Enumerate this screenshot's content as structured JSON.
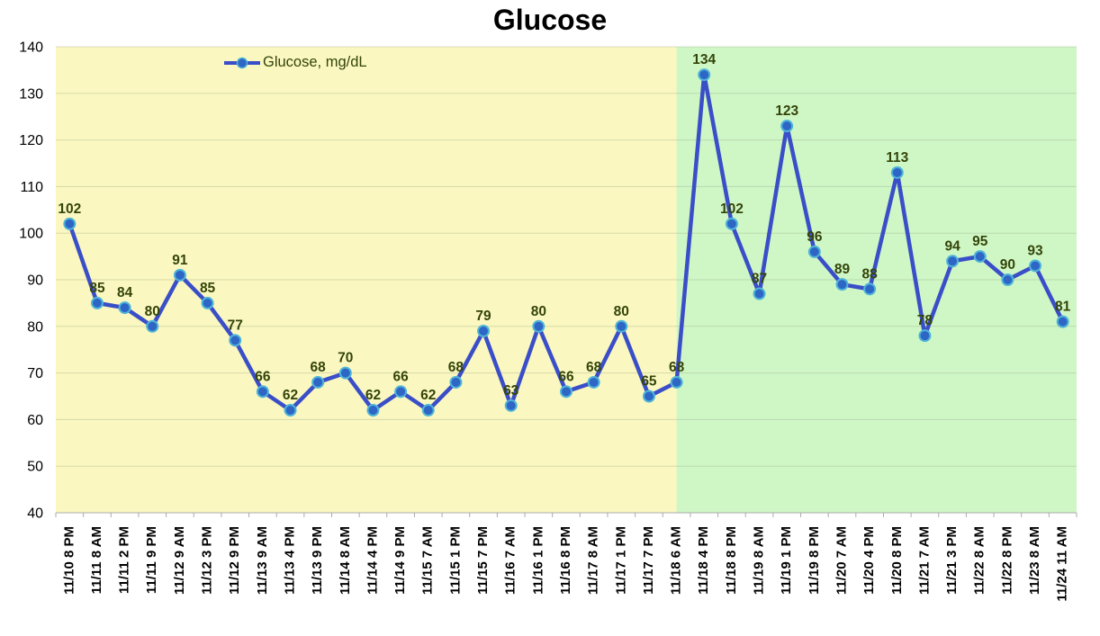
{
  "chart_data": {
    "type": "line",
    "title": "Glucose",
    "legend": {
      "label": "Glucose, mg/dL",
      "position": "top-inside-left"
    },
    "x_labels": [
      "11/10 8 PM",
      "11/11 8 AM",
      "11/11 2 PM",
      "11/11 9 PM",
      "11/12 9 AM",
      "11/12 3 PM",
      "11/12 9 PM",
      "11/13 9 AM",
      "11/13 4 PM",
      "11/13 9 PM",
      "11/14 8 AM",
      "11/14 4 PM",
      "11/14 9 PM",
      "11/15 7 AM",
      "11/15 1 PM",
      "11/15 7 PM",
      "11/16 7 AM",
      "11/16 1 PM",
      "11/16 8 PM",
      "11/17 8 AM",
      "11/17 1 PM",
      "11/17 7 PM",
      "11/18 6 AM",
      "11/18 4 PM",
      "11/18 8 PM",
      "11/19 8 AM",
      "11/19 1 PM",
      "11/19 8 PM",
      "11/20 7 AM",
      "11/20 4 PM",
      "11/20 8 PM",
      "11/21 7 AM",
      "11/21 3 PM",
      "11/22 8 AM",
      "11/22 8 PM",
      "11/23 8 AM",
      "11/24 11 AM"
    ],
    "values": [
      102,
      85,
      84,
      80,
      91,
      85,
      77,
      66,
      62,
      68,
      70,
      62,
      66,
      62,
      68,
      79,
      63,
      80,
      66,
      68,
      80,
      65,
      68,
      134,
      102,
      87,
      123,
      96,
      89,
      88,
      113,
      78,
      94,
      95,
      90,
      93,
      81
    ],
    "ylim": [
      40,
      140
    ],
    "y_tick_step": 10,
    "y_tick_labels": [
      "40",
      "50",
      "60",
      "70",
      "80",
      "90",
      "100",
      "110",
      "120",
      "130",
      "140"
    ],
    "grid": "horizontal",
    "background_bands": [
      {
        "label": "early-period-band",
        "from_index": 0,
        "to_index": 22,
        "color": "#FAF8C0"
      },
      {
        "label": "late-period-band",
        "from_index": 22,
        "to_index": 36,
        "color": "#CFF7C6"
      }
    ],
    "band_split_category": "11/18 6 AM",
    "colors": {
      "line": "#3A4EC8",
      "marker_fill": "#2E66C6",
      "marker_edge": "#4FB4D8",
      "data_label": "#344409",
      "legend_text": "#344409",
      "axis_text": "#000000",
      "gridline": "#8A9278",
      "tick": "#ABABAB",
      "title": "#000000"
    }
  }
}
